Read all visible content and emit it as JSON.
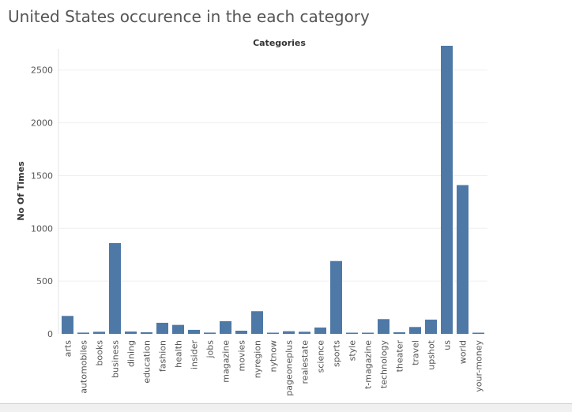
{
  "title": "United States occurence in the each category",
  "colors": {
    "bar": "#4e79a7",
    "grid": "#efefef",
    "text": "#555555"
  },
  "chart_data": {
    "type": "bar",
    "title": "United States occurence in the each category",
    "column_header": "Categories",
    "xlabel": "",
    "ylabel": "No Of Times",
    "ylim": [
      0,
      2700
    ],
    "yticks": [
      0,
      500,
      1000,
      1500,
      2000,
      2500
    ],
    "grid": true,
    "categories": [
      "arts",
      "automobiles",
      "books",
      "business",
      "dining",
      "education",
      "fashion",
      "health",
      "insider",
      "jobs",
      "magazine",
      "movies",
      "nyregion",
      "nytnow",
      "pageoneplus",
      "realestate",
      "science",
      "sports",
      "style",
      "t-magazine",
      "technology",
      "theater",
      "travel",
      "upshot",
      "us",
      "world",
      "your-money"
    ],
    "values": [
      170,
      12,
      20,
      860,
      22,
      15,
      105,
      85,
      38,
      12,
      120,
      30,
      215,
      8,
      25,
      20,
      60,
      690,
      5,
      8,
      140,
      15,
      65,
      135,
      2730,
      1410,
      10
    ]
  }
}
